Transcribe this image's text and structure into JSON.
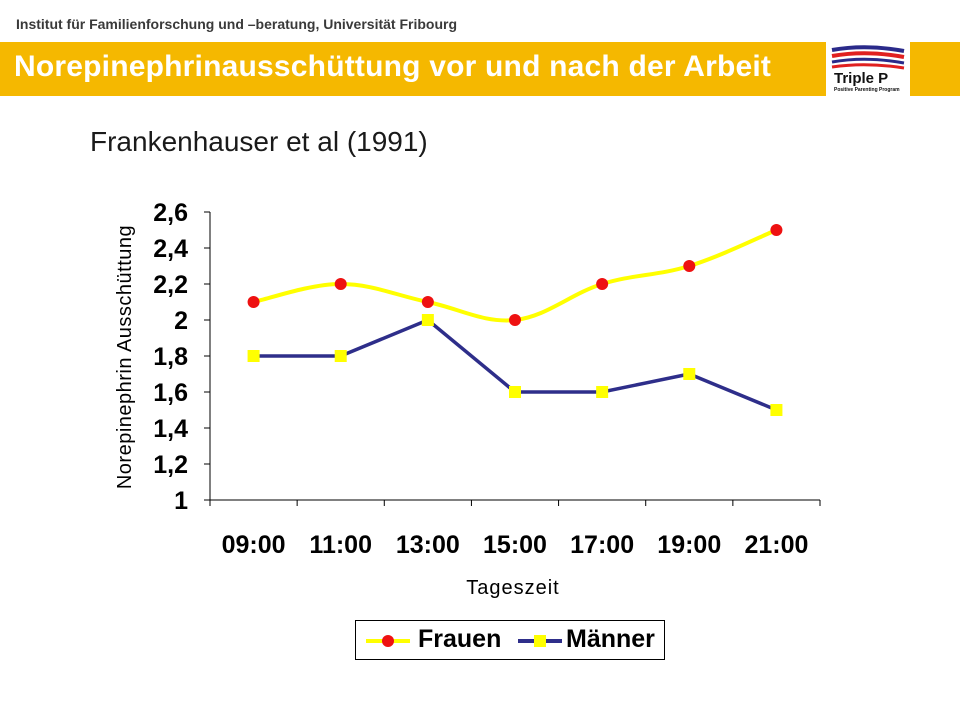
{
  "header": {
    "institute": "Institut für Familienforschung und –beratung, Universität Fribourg",
    "title": "Norepinephrinausschüttung vor und nach der Arbeit",
    "subtitle": "Frankenhauser et al (1991)",
    "logo_text": "Triple P",
    "logo_tagline": "Positive Parenting Program"
  },
  "colors": {
    "title_bar": "#f5b800",
    "frauen_line": "#ffff00",
    "frauen_marker": "#ee1111",
    "maenner_line": "#2e2e8a",
    "maenner_marker": "#ffff00"
  },
  "chart_data": {
    "type": "line",
    "categories": [
      "09:00",
      "11:00",
      "13:00",
      "15:00",
      "17:00",
      "19:00",
      "21:00"
    ],
    "series": [
      {
        "name": "Frauen",
        "values": [
          2.1,
          2.2,
          2.1,
          2.0,
          2.2,
          2.3,
          2.5
        ],
        "marker": "circle"
      },
      {
        "name": "Männer",
        "values": [
          1.8,
          1.8,
          2.0,
          1.6,
          1.6,
          1.7,
          1.5
        ],
        "marker": "square"
      }
    ],
    "xlabel": "Tageszeit",
    "ylabel": "Norepinephrin Ausschüttung",
    "ylim": [
      1,
      2.6
    ],
    "yticks": [
      "1",
      "1,2",
      "1,4",
      "1,6",
      "1,8",
      "2",
      "2,2",
      "2,4",
      "2,6"
    ],
    "yticks_values": [
      1,
      1.2,
      1.4,
      1.6,
      1.8,
      2,
      2.2,
      2.4,
      2.6
    ],
    "grid": false,
    "legend": "bottom"
  }
}
